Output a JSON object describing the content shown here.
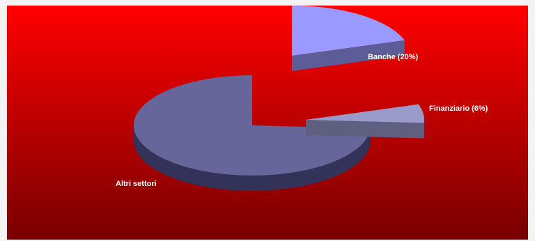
{
  "chart_data": {
    "type": "pie",
    "style": "3d-exploded",
    "background": {
      "top": "#ff0000",
      "bottom": "#780000"
    },
    "slices": [
      {
        "label": "Banche (20%)",
        "value": 20,
        "color": "#9999ff",
        "side": "#5c5c99",
        "exploded": true
      },
      {
        "label": "Finanziario (6%)",
        "value": 6,
        "color": "#9a9acb",
        "side": "#5f5f80",
        "exploded": true
      },
      {
        "label": "Altri settori",
        "value": 74,
        "color": "#66669a",
        "side": "#33335a",
        "exploded": false
      }
    ],
    "legend": "none",
    "grid": false
  }
}
